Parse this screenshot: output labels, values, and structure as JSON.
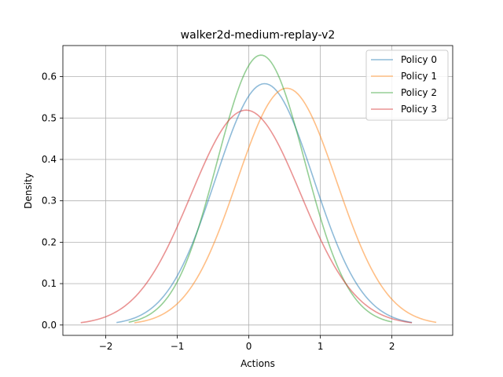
{
  "chart_data": {
    "type": "line",
    "title": "walker2d-medium-replay-v2",
    "xlabel": "Actions",
    "ylabel": "Density",
    "xlim": [
      -2.6,
      2.85
    ],
    "ylim": [
      -0.025,
      0.675
    ],
    "xticks": [
      -2,
      -1,
      0,
      1,
      2
    ],
    "xtick_labels": [
      "−2",
      "−1",
      "0",
      "1",
      "2"
    ],
    "yticks": [
      0.0,
      0.1,
      0.2,
      0.3,
      0.4,
      0.5,
      0.6
    ],
    "ytick_labels": [
      "0.0",
      "0.1",
      "0.2",
      "0.3",
      "0.4",
      "0.5",
      "0.6"
    ],
    "grid": true,
    "legend_position": "top-right",
    "series": [
      {
        "name": "Policy 0",
        "color": "#1f77b4",
        "peak_x": 0.22,
        "peak_density": 0.583,
        "x_range": [
          -1.85,
          2.28
        ]
      },
      {
        "name": "Policy 1",
        "color": "#ff7f0e",
        "peak_x": 0.53,
        "peak_density": 0.572,
        "x_range": [
          -1.6,
          2.62
        ]
      },
      {
        "name": "Policy 2",
        "color": "#2ca02c",
        "peak_x": 0.17,
        "peak_density": 0.652,
        "x_range": [
          -1.68,
          2.0
        ]
      },
      {
        "name": "Policy 3",
        "color": "#d62728",
        "peak_x": -0.04,
        "peak_density": 0.519,
        "x_range": [
          -2.35,
          2.28
        ]
      }
    ]
  }
}
